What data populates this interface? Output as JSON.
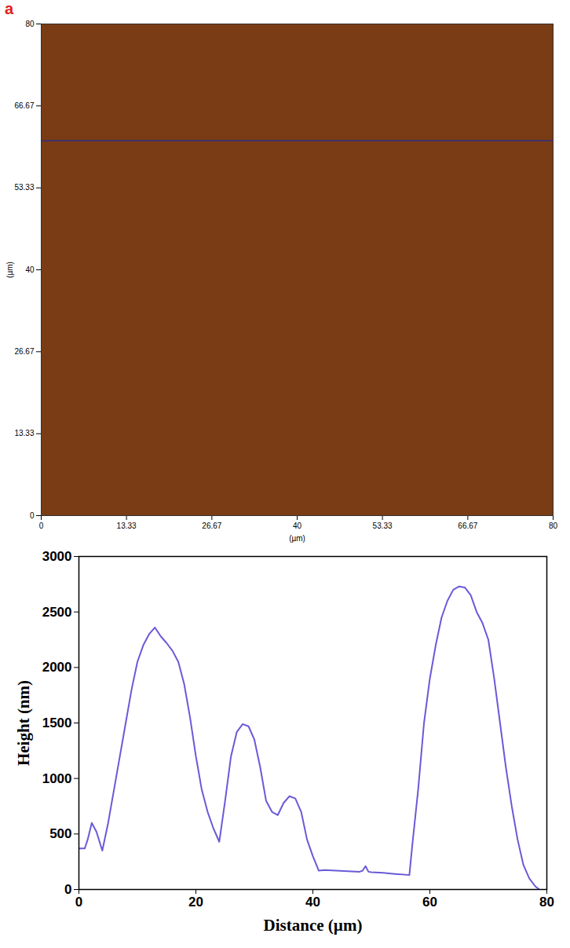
{
  "chart_data": [
    {
      "type": "image",
      "panel_label": "a",
      "xlabel": "(µm)",
      "ylabel": "(µm)",
      "xlim": [
        0,
        80
      ],
      "ylim": [
        0,
        80
      ],
      "xticks": [
        0,
        13.33,
        26.67,
        40,
        53.33,
        66.67,
        80
      ],
      "yticks": [
        0,
        13.33,
        26.67,
        40,
        53.33,
        66.67,
        80
      ],
      "scan_line_y": 61,
      "color": "#1f2a99"
    },
    {
      "type": "line",
      "xlabel": "Distance (µm)",
      "ylabel": "Height (nm)",
      "xlim": [
        0,
        80
      ],
      "ylim": [
        0,
        3000
      ],
      "xticks": [
        0,
        20,
        40,
        60,
        80
      ],
      "yticks": [
        0,
        500,
        1000,
        1500,
        2000,
        2500,
        3000
      ],
      "color": "#6a5ad8",
      "grid": false,
      "x": [
        0,
        1,
        1.5,
        2.2,
        3,
        4,
        5,
        6,
        7,
        8,
        9,
        10,
        11,
        12,
        13,
        14,
        15,
        16,
        17,
        18,
        19,
        20,
        21,
        22,
        23,
        24,
        25,
        26,
        27,
        28,
        29,
        30,
        31,
        32,
        33,
        34,
        35,
        36,
        37,
        38,
        39,
        40,
        41,
        42,
        44,
        46,
        48,
        48.5,
        49,
        49.5,
        50,
        52,
        54,
        56.5,
        57,
        58,
        59,
        60,
        61,
        62,
        63,
        64,
        65,
        66,
        67,
        68,
        69,
        70,
        71,
        72,
        73,
        74,
        75,
        76,
        77,
        78,
        78.7
      ],
      "values": [
        370,
        370,
        450,
        600,
        520,
        350,
        600,
        900,
        1200,
        1500,
        1800,
        2050,
        2200,
        2300,
        2360,
        2280,
        2220,
        2150,
        2050,
        1850,
        1550,
        1200,
        900,
        700,
        550,
        430,
        800,
        1200,
        1420,
        1490,
        1470,
        1350,
        1100,
        800,
        700,
        670,
        780,
        840,
        820,
        700,
        450,
        300,
        170,
        175,
        170,
        165,
        160,
        170,
        210,
        160,
        155,
        150,
        140,
        130,
        400,
        900,
        1500,
        1900,
        2200,
        2450,
        2600,
        2700,
        2730,
        2720,
        2650,
        2500,
        2400,
        2250,
        1900,
        1500,
        1100,
        750,
        450,
        220,
        100,
        30,
        0
      ]
    }
  ]
}
